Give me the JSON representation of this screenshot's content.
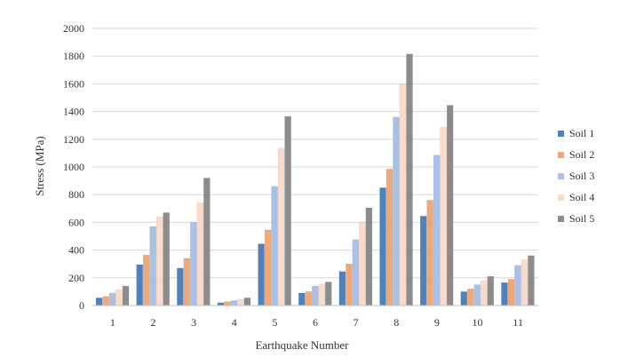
{
  "chart_data": {
    "type": "bar",
    "xlabel": "Earthquake Number",
    "ylabel": "Stress (MPa)",
    "ylim": [
      0,
      2000
    ],
    "yticks": [
      0,
      200,
      400,
      600,
      800,
      1000,
      1200,
      1400,
      1600,
      1800,
      2000
    ],
    "grid": true,
    "legend_position": "right",
    "categories": [
      "1",
      "2",
      "3",
      "4",
      "5",
      "6",
      "7",
      "8",
      "9",
      "10",
      "11"
    ],
    "series": [
      {
        "name": "Soil 1",
        "color": "#4f81bd",
        "values": [
          55,
          295,
          270,
          20,
          445,
          90,
          245,
          850,
          645,
          100,
          165
        ]
      },
      {
        "name": "Soil 2",
        "color": "#f0a878",
        "values": [
          65,
          365,
          340,
          28,
          545,
          100,
          300,
          985,
          760,
          120,
          190
        ]
      },
      {
        "name": "Soil 3",
        "color": "#a9c1e6",
        "values": [
          90,
          570,
          600,
          35,
          860,
          140,
          475,
          1360,
          1085,
          150,
          290
        ]
      },
      {
        "name": "Soil 4",
        "color": "#fbdccb",
        "values": [
          115,
          640,
          740,
          45,
          1135,
          155,
          600,
          1600,
          1285,
          180,
          330
        ]
      },
      {
        "name": "Soil 5",
        "color": "#8c8c8c",
        "values": [
          140,
          670,
          920,
          55,
          1365,
          170,
          705,
          1815,
          1445,
          210,
          360
        ]
      }
    ]
  }
}
